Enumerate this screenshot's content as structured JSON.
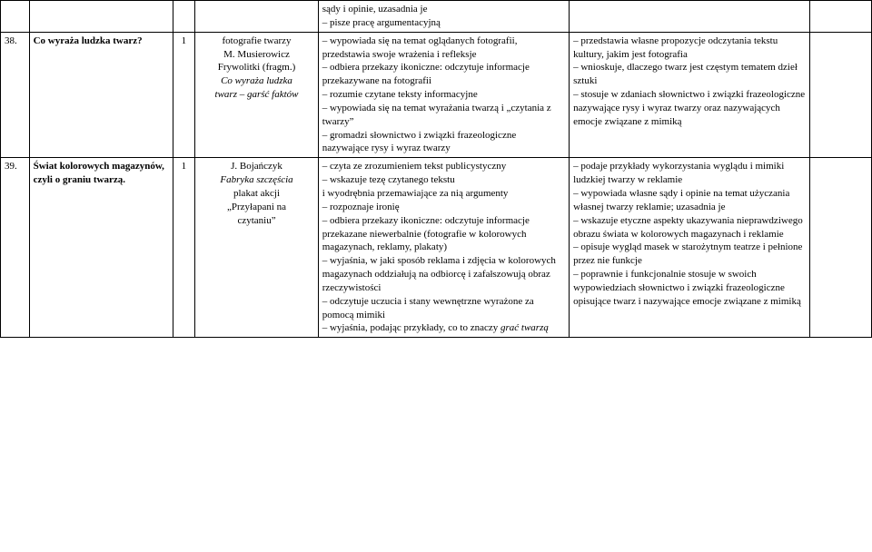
{
  "rows": [
    {
      "num": "",
      "topic": "",
      "hrs": "",
      "src": "",
      "colA": "sądy i opinie, uzasadnia je\n– pisze pracę argumentacyjną",
      "colB": "",
      "colC": ""
    },
    {
      "num": "38.",
      "topic": "Co wyraża ludzka twarz?",
      "hrs": "1",
      "src_lines": [
        {
          "t": "fotografie twarzy",
          "it": false
        },
        {
          "t": "M. Musierowicz",
          "it": false
        },
        {
          "t": "Frywolitki (fragm.)",
          "it": false
        },
        {
          "t": "Co wyraża ludzka",
          "it": true
        },
        {
          "t": "twarz – garść faktów",
          "it": true
        }
      ],
      "colA": "– wypowiada się na temat oglądanych fotografii, przedstawia swoje wrażenia i refleksje\n– odbiera przekazy ikoniczne: odczytuje informacje przekazywane na fotografii\n– rozumie czytane teksty informacyjne\n– wypowiada się na temat wyrażania twarzą i „czytania z twarzy”\n– gromadzi słownictwo i związki frazeologiczne nazywające rysy i wyraz twarzy",
      "colB": "– przedstawia własne propozycje odczytania tekstu kultury, jakim jest fotografia\n– wnioskuje, dlaczego twarz jest częstym tematem dzieł sztuki\n– stosuje w zdaniach słownictwo  i związki frazeologiczne nazywające rysy i wyraz twarzy oraz nazywających emocje związane z mimiką",
      "colC": ""
    },
    {
      "num": "39.",
      "topic": "Świat kolorowych magazynów, czyli o graniu twarzą.",
      "hrs": "1",
      "src_lines": [
        {
          "t": "J. Bojańczyk",
          "it": false
        },
        {
          "t": "Fabryka szczęścia",
          "it": true
        },
        {
          "t": "plakat akcji",
          "it": false
        },
        {
          "t": "„Przyłapani na",
          "it": false
        },
        {
          "t": "czytaniu”",
          "it": false
        }
      ],
      "colA": "– czyta ze zrozumieniem tekst publicystyczny\n– wskazuje tezę czytanego tekstu\n i wyodrębnia przemawiające za nią argumenty\n– rozpoznaje ironię\n– odbiera przekazy ikoniczne: odczytuje informacje przekazane niewerbalnie (fotografie w kolorowych magazynach, reklamy, plakaty)\n– wyjaśnia, w jaki sposób reklama i zdjęcia w kolorowych magazynach oddziałują na odbiorcę i zafałszowują obraz rzeczywistości\n– odczytuje uczucia i stany wewnętrzne wyrażone za pomocą mimiki\n– wyjaśnia, podając przykłady, co to znaczy grać twarzą",
      "colA_tail_italic": "grać twarzą",
      "colB": "– podaje przykłady wykorzystania wyglądu i mimiki ludzkiej twarzy w reklamie\n– wypowiada własne sądy i opinie na temat użyczania własnej twarzy reklamie; uzasadnia je\n– wskazuje etyczne aspekty ukazywania nieprawdziwego obrazu świata w kolorowych magazynach i reklamie\n– opisuje wygląd masek w starożytnym teatrze i pełnione przez nie funkcje\n– poprawnie i funkcjonalnie stosuje  w swoich wypowiedziach słownictwo i związki frazeologiczne opisujące twarz i nazywające emocje związane z mimiką",
      "colC": ""
    }
  ]
}
